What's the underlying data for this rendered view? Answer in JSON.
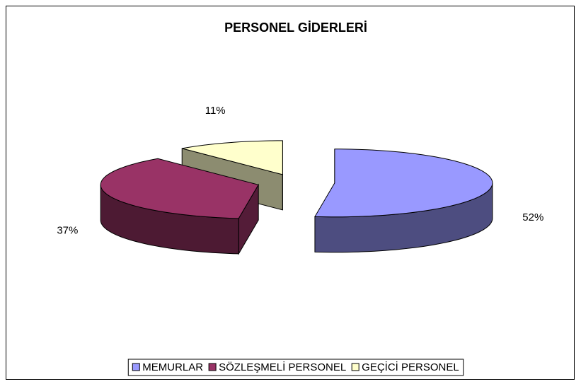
{
  "chart_data": {
    "type": "pie3d",
    "title": "PERSONEL GİDERLERİ",
    "categories": [
      "MEMURLAR",
      "SÖZLEŞMELİ PERSONEL",
      "GEÇİCİ PERSONEL"
    ],
    "values": [
      52,
      37,
      11
    ],
    "value_labels": [
      "52%",
      "37%",
      "11%"
    ],
    "colors": [
      "#9999ff",
      "#993366",
      "#ffffcc"
    ],
    "legend": "bottom"
  }
}
